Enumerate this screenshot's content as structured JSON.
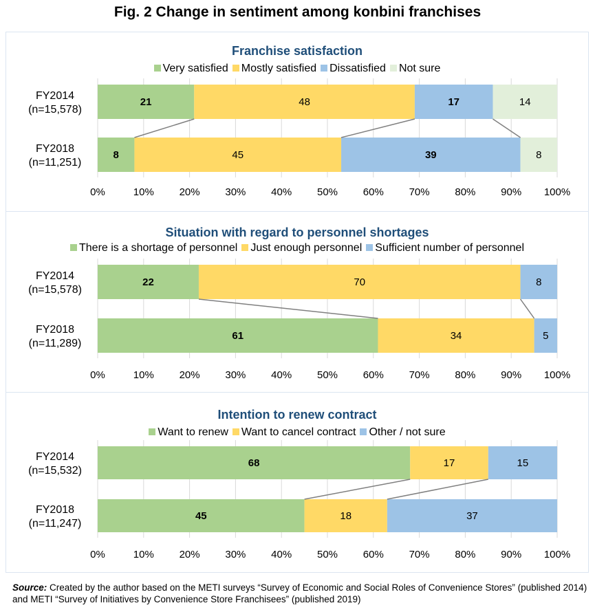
{
  "figure_title": "Fig. 2 Change in sentiment among konbini franchises",
  "source": {
    "label": "Source:",
    "text": " Created by the author based on the METI surveys “Survey of Economic and Social Roles of Convenience Stores” (published 2014) and METI “Survey of Initiatives by Convenience Store Franchisees” (published 2019)"
  },
  "colors": {
    "green": "#a9d18e",
    "yellow": "#ffd966",
    "blue": "#9dc3e6",
    "pale_green": "#e2efda",
    "connector": "#7f7f7f",
    "grid": "#d9d9d9",
    "title": "#1f4e79"
  },
  "chart_data": [
    {
      "type": "bar",
      "orientation": "horizontal",
      "stacked": "100%",
      "title": "Franchise satisfaction",
      "categories": [
        "FY2014\n(n=15,578)",
        "FY2018\n(n=11,251)"
      ],
      "category_lines": [
        [
          "FY2014",
          "(n=15,578)"
        ],
        [
          "FY2018",
          "(n=11,251)"
        ]
      ],
      "series": [
        {
          "name": "Very satisfied",
          "color": "#a9d18e",
          "values": [
            21,
            8
          ],
          "bold_labels": true
        },
        {
          "name": "Mostly satisfied",
          "color": "#ffd966",
          "values": [
            48,
            45
          ],
          "bold_labels": false
        },
        {
          "name": "Dissatisfied",
          "color": "#9dc3e6",
          "values": [
            17,
            39
          ],
          "bold_labels": true
        },
        {
          "name": "Not sure",
          "color": "#e2efda",
          "values": [
            14,
            8
          ],
          "bold_labels": false
        }
      ],
      "series_lines_after": [
        0,
        1,
        2
      ],
      "xlim": [
        0,
        100
      ],
      "xticks": [
        "0%",
        "10%",
        "20%",
        "30%",
        "40%",
        "50%",
        "60%",
        "70%",
        "80%",
        "90%",
        "100%"
      ],
      "grid": true,
      "legend": "top"
    },
    {
      "type": "bar",
      "orientation": "horizontal",
      "stacked": "100%",
      "title": "Situation with regard to personnel shortages",
      "categories": [
        "FY2014\n(n=15,578)",
        "FY2018\n(n=11,289)"
      ],
      "category_lines": [
        [
          "FY2014",
          "(n=15,578)"
        ],
        [
          "FY2018",
          "(n=11,289)"
        ]
      ],
      "series": [
        {
          "name": "There is a shortage of personnel",
          "color": "#a9d18e",
          "values": [
            22,
            61
          ],
          "bold_labels": true
        },
        {
          "name": "Just enough personnel",
          "color": "#ffd966",
          "values": [
            70,
            34
          ],
          "bold_labels": false
        },
        {
          "name": "Sufficient number of personnel",
          "color": "#9dc3e6",
          "values": [
            8,
            5
          ],
          "bold_labels": false
        }
      ],
      "series_lines_after": [
        0,
        1
      ],
      "xlim": [
        0,
        100
      ],
      "xticks": [
        "0%",
        "10%",
        "20%",
        "30%",
        "40%",
        "50%",
        "60%",
        "70%",
        "80%",
        "90%",
        "100%"
      ],
      "grid": true,
      "legend": "top"
    },
    {
      "type": "bar",
      "orientation": "horizontal",
      "stacked": "100%",
      "title": "Intention to renew contract",
      "categories": [
        "FY2014\n(n=15,532)",
        "FY2018\n(n=11,247)"
      ],
      "category_lines": [
        [
          "FY2014",
          "(n=15,532)"
        ],
        [
          "FY2018",
          "(n=11,247)"
        ]
      ],
      "series": [
        {
          "name": "Want to renew",
          "color": "#a9d18e",
          "values": [
            68,
            45
          ],
          "bold_labels": true
        },
        {
          "name": "Want to cancel contract",
          "color": "#ffd966",
          "values": [
            17,
            18
          ],
          "bold_labels": false
        },
        {
          "name": "Other / not sure",
          "color": "#9dc3e6",
          "values": [
            15,
            37
          ],
          "bold_labels": false
        }
      ],
      "series_lines_after": [
        0,
        1
      ],
      "xlim": [
        0,
        100
      ],
      "xticks": [
        "0%",
        "10%",
        "20%",
        "30%",
        "40%",
        "50%",
        "60%",
        "70%",
        "80%",
        "90%",
        "100%"
      ],
      "grid": true,
      "legend": "top"
    }
  ]
}
